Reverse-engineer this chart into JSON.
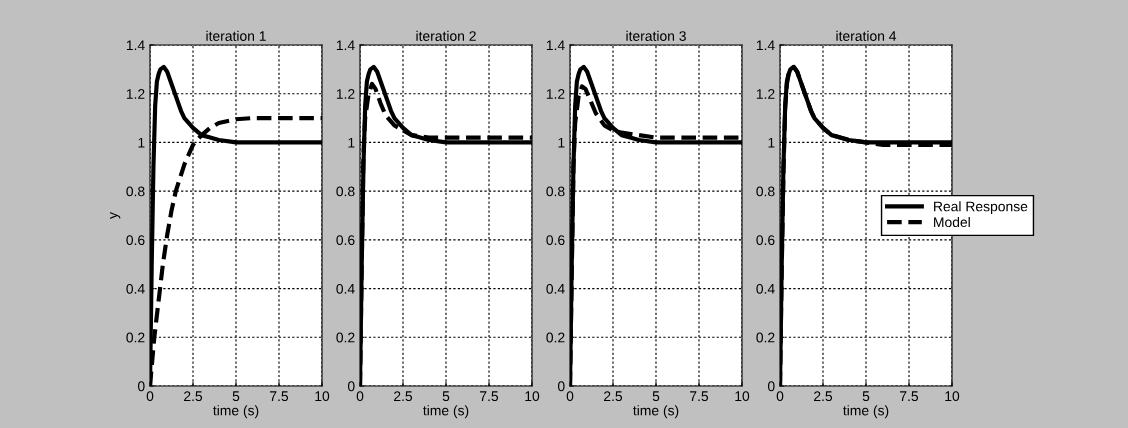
{
  "chart_data": [
    {
      "type": "line",
      "title": "iteration 1",
      "xlabel": "time (s)",
      "ylabel": "y",
      "xlim": [
        0,
        10
      ],
      "ylim": [
        0,
        1.4
      ],
      "xticks": [
        0,
        2.5,
        5,
        7.5,
        10
      ],
      "yticks": [
        0,
        0.2,
        0.4,
        0.6,
        0.8,
        1,
        1.2,
        1.4
      ],
      "grid": true,
      "legend": false,
      "series": [
        {
          "color": "#000000",
          "line_style": "solid",
          "x": [
            0,
            0.1,
            0.2,
            0.3,
            0.4,
            0.5,
            0.6,
            0.8,
            1.0,
            1.2,
            1.5,
            1.8,
            2.0,
            2.5,
            3,
            3.5,
            4,
            5,
            6,
            8,
            10
          ],
          "values": [
            0,
            0.5,
            0.9,
            1.15,
            1.25,
            1.28,
            1.3,
            1.31,
            1.29,
            1.25,
            1.19,
            1.13,
            1.1,
            1.06,
            1.03,
            1.02,
            1.01,
            1.0,
            1.0,
            1.0,
            1.0
          ]
        },
        {
          "color": "#000000",
          "line_style": "dashed",
          "x": [
            0,
            0.25,
            0.5,
            0.75,
            1,
            1.25,
            1.5,
            2,
            2.5,
            3,
            3.5,
            4,
            5,
            6,
            8,
            10
          ],
          "values": [
            0,
            0.2,
            0.35,
            0.5,
            0.62,
            0.72,
            0.8,
            0.91,
            0.99,
            1.03,
            1.06,
            1.08,
            1.095,
            1.1,
            1.1,
            1.1
          ]
        }
      ]
    },
    {
      "type": "line",
      "title": "iteration 2",
      "xlabel": "time (s)",
      "xlim": [
        0,
        10
      ],
      "ylim": [
        0,
        1.4
      ],
      "xticks": [
        0,
        2.5,
        5,
        7.5,
        10
      ],
      "yticks": [
        0,
        0.2,
        0.4,
        0.6,
        0.8,
        1,
        1.2,
        1.4
      ],
      "grid": true,
      "legend": false,
      "series": [
        {
          "color": "#000000",
          "line_style": "solid",
          "x": [
            0,
            0.1,
            0.2,
            0.3,
            0.4,
            0.5,
            0.6,
            0.8,
            1.0,
            1.2,
            1.5,
            1.8,
            2.0,
            2.5,
            3,
            3.5,
            4,
            5,
            6,
            8,
            10
          ],
          "values": [
            0,
            0.5,
            0.9,
            1.15,
            1.25,
            1.28,
            1.3,
            1.31,
            1.29,
            1.25,
            1.19,
            1.13,
            1.1,
            1.06,
            1.03,
            1.02,
            1.01,
            1.0,
            1.0,
            1.0,
            1.0
          ]
        },
        {
          "color": "#000000",
          "line_style": "dashed",
          "x": [
            0,
            0.1,
            0.2,
            0.3,
            0.5,
            0.7,
            0.9,
            1.2,
            1.5,
            2,
            2.5,
            3,
            4,
            5,
            10
          ],
          "values": [
            0,
            0.5,
            0.95,
            1.1,
            1.2,
            1.24,
            1.22,
            1.16,
            1.11,
            1.07,
            1.05,
            1.03,
            1.02,
            1.02,
            1.02
          ]
        }
      ]
    },
    {
      "type": "line",
      "title": "iteration 3",
      "xlabel": "time (s)",
      "xlim": [
        0,
        10
      ],
      "ylim": [
        0,
        1.4
      ],
      "xticks": [
        0,
        2.5,
        5,
        7.5,
        10
      ],
      "yticks": [
        0,
        0.2,
        0.4,
        0.6,
        0.8,
        1,
        1.2,
        1.4
      ],
      "grid": true,
      "legend": false,
      "series": [
        {
          "color": "#000000",
          "line_style": "solid",
          "x": [
            0,
            0.1,
            0.2,
            0.3,
            0.4,
            0.5,
            0.6,
            0.8,
            1.0,
            1.2,
            1.5,
            1.8,
            2.0,
            2.5,
            3,
            3.5,
            4,
            5,
            6,
            8,
            10
          ],
          "values": [
            0,
            0.5,
            0.9,
            1.15,
            1.25,
            1.28,
            1.3,
            1.31,
            1.29,
            1.25,
            1.19,
            1.13,
            1.1,
            1.06,
            1.03,
            1.02,
            1.01,
            1.0,
            1.0,
            1.0,
            1.0
          ]
        },
        {
          "color": "#000000",
          "line_style": "dashed",
          "x": [
            0,
            0.1,
            0.2,
            0.3,
            0.5,
            0.7,
            0.9,
            1.2,
            1.5,
            2,
            2.5,
            3,
            4,
            5,
            10
          ],
          "values": [
            0,
            0.45,
            0.9,
            1.08,
            1.19,
            1.23,
            1.22,
            1.17,
            1.12,
            1.07,
            1.05,
            1.04,
            1.03,
            1.02,
            1.02
          ]
        }
      ]
    },
    {
      "type": "line",
      "title": "iteration 4",
      "xlabel": "time (s)",
      "xlim": [
        0,
        10
      ],
      "ylim": [
        0,
        1.4
      ],
      "xticks": [
        0,
        2.5,
        5,
        7.5,
        10
      ],
      "yticks": [
        0,
        0.2,
        0.4,
        0.6,
        0.8,
        1,
        1.2,
        1.4
      ],
      "grid": true,
      "legend": "right",
      "series": [
        {
          "name": "Real Response",
          "color": "#000000",
          "line_style": "solid",
          "x": [
            0,
            0.1,
            0.2,
            0.3,
            0.4,
            0.5,
            0.6,
            0.8,
            1.0,
            1.2,
            1.5,
            1.8,
            2.0,
            2.5,
            3,
            3.5,
            4,
            5,
            6,
            8,
            10
          ],
          "values": [
            0,
            0.5,
            0.9,
            1.15,
            1.25,
            1.28,
            1.3,
            1.31,
            1.29,
            1.25,
            1.19,
            1.13,
            1.1,
            1.06,
            1.03,
            1.02,
            1.01,
            1.0,
            1.0,
            1.0,
            1.0
          ]
        },
        {
          "name": "Model",
          "color": "#000000",
          "line_style": "dashed",
          "x": [
            0,
            0.1,
            0.2,
            0.3,
            0.4,
            0.5,
            0.6,
            0.8,
            1.0,
            1.2,
            1.5,
            1.8,
            2.0,
            2.5,
            3,
            3.5,
            4,
            5,
            6,
            8,
            10
          ],
          "values": [
            0,
            0.48,
            0.88,
            1.14,
            1.24,
            1.28,
            1.3,
            1.31,
            1.29,
            1.25,
            1.19,
            1.13,
            1.1,
            1.06,
            1.03,
            1.02,
            1.01,
            1.0,
            0.99,
            0.99,
            0.99
          ]
        }
      ]
    }
  ]
}
